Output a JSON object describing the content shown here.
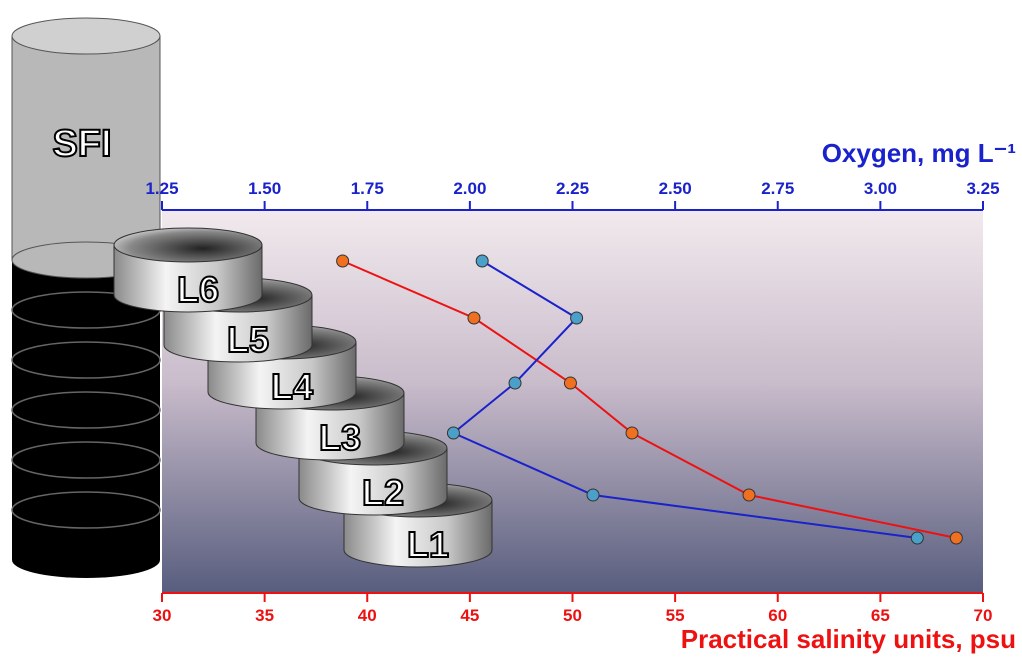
{
  "chart_data": {
    "type": "line",
    "xlabel": "Practical salinity units, psu",
    "x2label": "Oxygen, mg L⁻¹",
    "column_label": "SFI",
    "categories": [
      "L6",
      "L5",
      "L4",
      "L3",
      "L2",
      "L1"
    ],
    "xlim": [
      30,
      70
    ],
    "xticks": [
      30,
      35,
      40,
      45,
      50,
      55,
      60,
      65,
      70
    ],
    "x2lim": [
      1.25,
      3.25
    ],
    "x2ticks": [
      1.25,
      {
        "value": 1.5,
        "label": "1.50"
      },
      1.75,
      {
        "value": 2.0,
        "label": "2.00"
      },
      2.25,
      {
        "value": 2.5,
        "label": "2.50"
      },
      2.75,
      {
        "value": 3.0,
        "label": "3.00"
      },
      3.25
    ],
    "x_color": "#ee1111",
    "x2_color": "#1a22cc",
    "series": [
      {
        "color": "#ee1111",
        "marker_color": "#f07020",
        "axis": "x",
        "values": [
          38.8,
          45.2,
          49.9,
          52.9,
          58.6,
          68.7
        ]
      },
      {
        "color": "#1a22cc",
        "marker_color": "#4aa0c8",
        "axis": "x2",
        "values": [
          2.03,
          2.26,
          2.11,
          1.96,
          2.3,
          3.09
        ]
      }
    ]
  }
}
